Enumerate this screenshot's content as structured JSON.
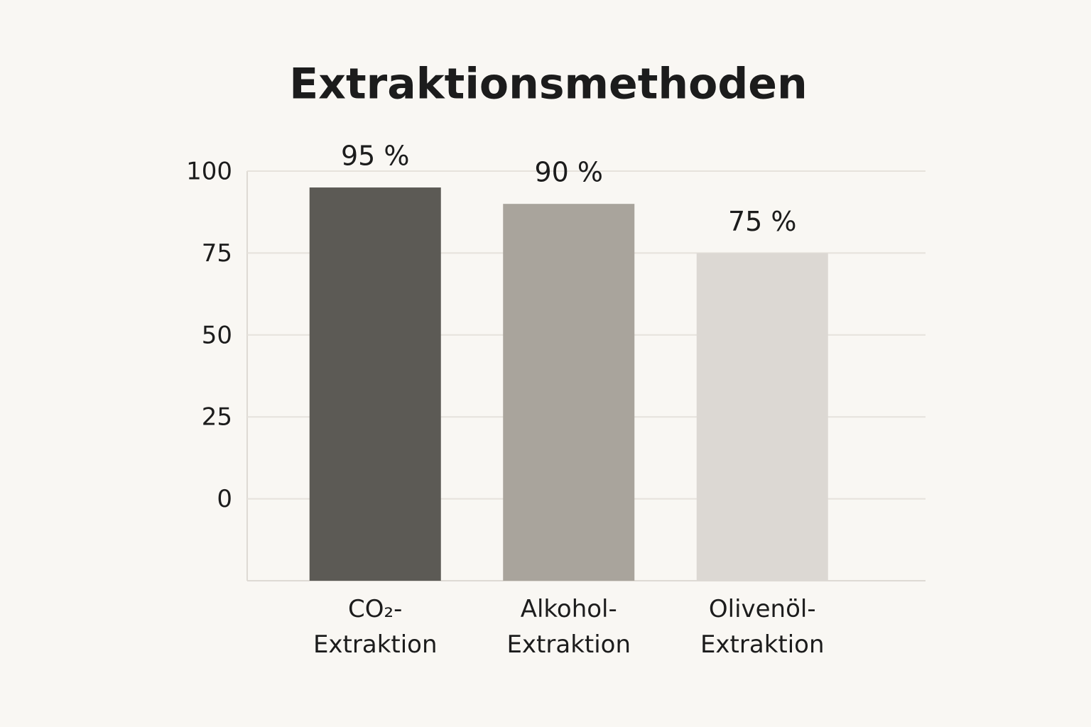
{
  "chart_data": {
    "type": "bar",
    "title": "Extraktionsmethoden",
    "categories": [
      "CO₂-Extraktion",
      "Alkohol-Extraktion",
      "Olivenöl-Extraktion"
    ],
    "values": [
      95,
      90,
      75
    ],
    "value_labels": [
      "95 %",
      "90 %",
      "75 %"
    ],
    "colors": [
      "#5c5a55",
      "#a9a49c",
      "#dcd8d3"
    ],
    "ylim": [
      -25,
      100
    ],
    "yticks": [
      0,
      25,
      50,
      75,
      100
    ],
    "grid": true
  }
}
